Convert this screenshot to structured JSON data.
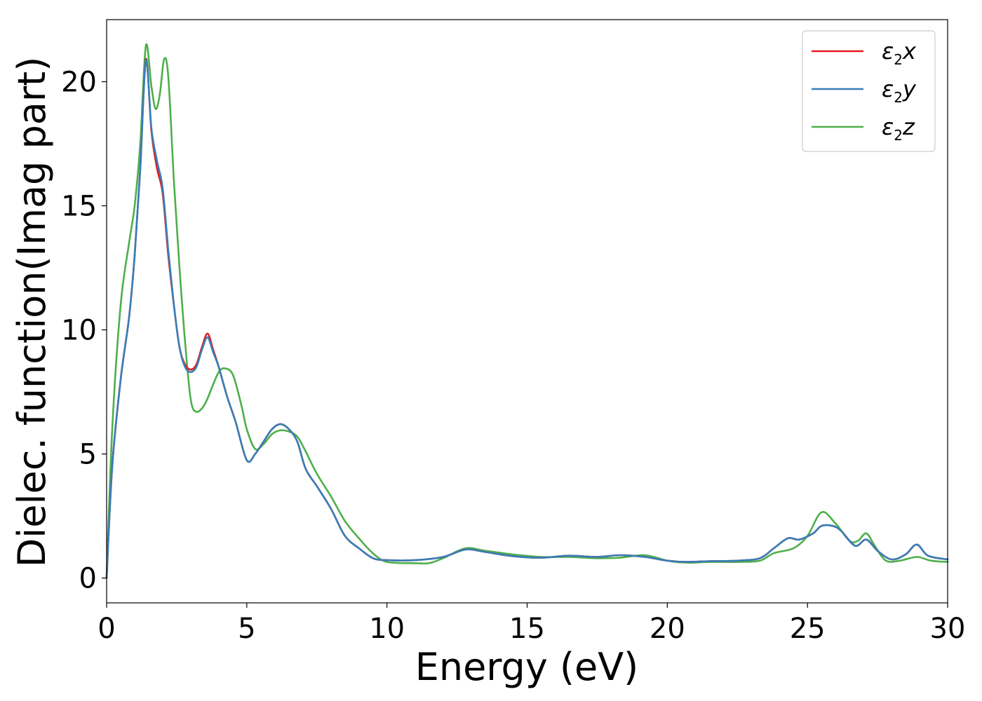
{
  "chart_data": {
    "type": "line",
    "xlabel": "Energy (eV)",
    "ylabel": "Dielec. function(Imag part)",
    "xlim": [
      0,
      30
    ],
    "ylim": [
      -1.0,
      22.5
    ],
    "xticks": [
      0,
      5,
      10,
      15,
      20,
      25,
      30
    ],
    "yticks": [
      0,
      5,
      10,
      15,
      20
    ],
    "grid": false,
    "legend_position": "top-right",
    "series": [
      {
        "name": "ε2x",
        "symbol": "ε",
        "subscript": "2",
        "component": "x",
        "color": "#e41a1c",
        "x": [
          0,
          0.2,
          0.5,
          0.8,
          1.0,
          1.2,
          1.4,
          1.6,
          1.8,
          2.0,
          2.2,
          2.4,
          2.6,
          2.8,
          3.0,
          3.2,
          3.4,
          3.6,
          3.8,
          4.0,
          4.3,
          4.6,
          5.0,
          5.3,
          5.6,
          5.9,
          6.2,
          6.5,
          6.8,
          7.1,
          7.5,
          8.0,
          8.5,
          9.0,
          9.5,
          10.0,
          11.0,
          12.0,
          12.8,
          13.5,
          14.5,
          15.5,
          16.5,
          17.5,
          18.3,
          19.2,
          20.0,
          20.7,
          21.5,
          22.5,
          23.3,
          23.8,
          24.3,
          24.7,
          25.2,
          25.5,
          25.9,
          26.2,
          26.7,
          27.1,
          27.5,
          28.0,
          28.5,
          28.9,
          29.3,
          30.0
        ],
        "y": [
          0,
          4.5,
          8.0,
          10.5,
          13.0,
          16.5,
          20.9,
          18.0,
          16.5,
          15.5,
          13.0,
          11.0,
          9.3,
          8.6,
          8.4,
          8.6,
          9.3,
          9.85,
          9.2,
          8.5,
          7.3,
          6.3,
          4.75,
          5.0,
          5.5,
          6.0,
          6.2,
          6.0,
          5.5,
          4.4,
          3.7,
          2.8,
          1.7,
          1.2,
          0.8,
          0.72,
          0.72,
          0.85,
          1.15,
          1.05,
          0.88,
          0.82,
          0.9,
          0.85,
          0.92,
          0.85,
          0.7,
          0.65,
          0.68,
          0.7,
          0.8,
          1.2,
          1.6,
          1.55,
          1.8,
          2.1,
          2.1,
          1.9,
          1.3,
          1.55,
          1.1,
          0.75,
          0.95,
          1.35,
          0.9,
          0.75
        ]
      },
      {
        "name": "ε2y",
        "symbol": "ε",
        "subscript": "2",
        "component": "y",
        "color": "#377eb8",
        "x": [
          0,
          0.2,
          0.5,
          0.8,
          1.0,
          1.2,
          1.4,
          1.6,
          1.8,
          2.0,
          2.2,
          2.4,
          2.6,
          2.8,
          3.0,
          3.2,
          3.4,
          3.6,
          3.8,
          4.0,
          4.3,
          4.6,
          5.0,
          5.3,
          5.6,
          5.9,
          6.2,
          6.5,
          6.8,
          7.1,
          7.5,
          8.0,
          8.5,
          9.0,
          9.5,
          10.0,
          11.0,
          12.0,
          12.8,
          13.5,
          14.5,
          15.5,
          16.5,
          17.5,
          18.3,
          19.2,
          20.0,
          20.7,
          21.5,
          22.5,
          23.3,
          23.8,
          24.3,
          24.7,
          25.2,
          25.5,
          25.9,
          26.2,
          26.7,
          27.1,
          27.5,
          28.0,
          28.5,
          28.9,
          29.3,
          30.0
        ],
        "y": [
          0,
          4.5,
          8.0,
          10.5,
          13.0,
          16.5,
          20.85,
          18.1,
          16.8,
          15.7,
          13.2,
          11.0,
          9.3,
          8.5,
          8.3,
          8.5,
          9.2,
          9.7,
          9.1,
          8.5,
          7.3,
          6.3,
          4.75,
          5.0,
          5.5,
          6.0,
          6.2,
          6.0,
          5.5,
          4.4,
          3.7,
          2.8,
          1.7,
          1.2,
          0.8,
          0.72,
          0.72,
          0.85,
          1.15,
          1.05,
          0.88,
          0.82,
          0.9,
          0.85,
          0.92,
          0.85,
          0.7,
          0.65,
          0.68,
          0.7,
          0.8,
          1.2,
          1.6,
          1.55,
          1.8,
          2.1,
          2.1,
          1.9,
          1.3,
          1.55,
          1.1,
          0.75,
          0.95,
          1.35,
          0.9,
          0.75
        ]
      },
      {
        "name": "ε2z",
        "symbol": "ε",
        "subscript": "2",
        "component": "z",
        "color": "#4daf4a",
        "x": [
          0,
          0.2,
          0.5,
          0.8,
          1.0,
          1.2,
          1.4,
          1.6,
          1.75,
          1.9,
          2.05,
          2.2,
          2.4,
          2.6,
          2.8,
          3.0,
          3.2,
          3.5,
          3.8,
          4.0,
          4.2,
          4.5,
          4.8,
          5.0,
          5.3,
          5.6,
          5.9,
          6.2,
          6.5,
          6.8,
          7.1,
          7.5,
          8.0,
          8.5,
          9.0,
          9.5,
          10.0,
          11.0,
          11.5,
          12.0,
          12.8,
          13.5,
          14.5,
          15.5,
          16.5,
          17.5,
          18.3,
          19.2,
          20.0,
          20.7,
          21.5,
          22.5,
          23.3,
          23.8,
          24.5,
          25.0,
          25.5,
          26.0,
          26.5,
          26.8,
          27.1,
          27.4,
          27.8,
          28.3,
          28.9,
          29.4,
          30.0
        ],
        "y": [
          0,
          6.0,
          11.0,
          13.5,
          15.0,
          17.5,
          21.45,
          19.8,
          18.9,
          19.5,
          20.9,
          20.2,
          16.0,
          12.5,
          9.5,
          7.2,
          6.7,
          7.0,
          7.8,
          8.3,
          8.45,
          8.2,
          7.0,
          6.0,
          5.2,
          5.4,
          5.8,
          5.95,
          5.9,
          5.7,
          5.1,
          4.2,
          3.3,
          2.3,
          1.6,
          1.0,
          0.65,
          0.6,
          0.6,
          0.8,
          1.2,
          1.1,
          0.95,
          0.85,
          0.85,
          0.8,
          0.82,
          0.92,
          0.7,
          0.62,
          0.65,
          0.65,
          0.7,
          1.0,
          1.2,
          1.7,
          2.65,
          2.2,
          1.5,
          1.5,
          1.8,
          1.3,
          0.7,
          0.7,
          0.85,
          0.7,
          0.65
        ]
      }
    ]
  }
}
